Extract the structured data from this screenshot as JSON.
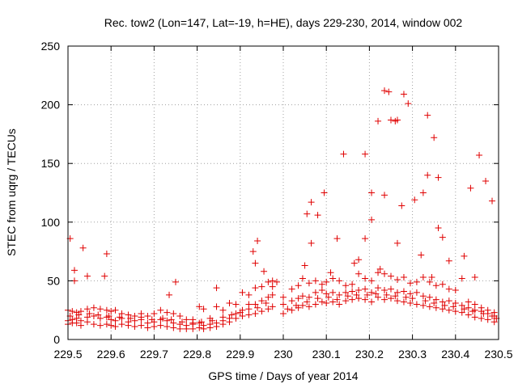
{
  "chart_data": {
    "type": "scatter",
    "title": "Rec. tow2 (Lon=147, Lat=-19, h=HE), days 229-230, 2014, window 002",
    "xlabel": "GPS time / Days of year 2014",
    "ylabel": "STEC from uqrg / TECUs",
    "xlim": [
      229.5,
      230.5
    ],
    "ylim": [
      0,
      250
    ],
    "x_ticks": [
      229.5,
      229.6,
      229.7,
      229.8,
      229.9,
      230.0,
      230.1,
      230.2,
      230.3,
      230.4,
      230.5
    ],
    "x_tick_labels": [
      "229.5",
      "229.6",
      "229.7",
      "229.8",
      "229.9",
      "230",
      "230.1",
      "230.2",
      "230.3",
      "230.4",
      "230.5"
    ],
    "y_ticks": [
      0,
      50,
      100,
      150,
      200,
      250
    ],
    "y_tick_labels": [
      "0",
      "50",
      "100",
      "150",
      "200",
      "250"
    ],
    "grid": true,
    "marker": "+",
    "series": [
      {
        "name": "STEC",
        "color": "#e00000",
        "points": [
          [
            229.505,
            86
          ],
          [
            229.515,
            59
          ],
          [
            229.515,
            50
          ],
          [
            229.535,
            78
          ],
          [
            229.545,
            54
          ],
          [
            229.585,
            54
          ],
          [
            229.59,
            73
          ],
          [
            229.735,
            38
          ],
          [
            229.75,
            49
          ],
          [
            229.845,
            44
          ],
          [
            229.93,
            75
          ],
          [
            229.935,
            65
          ],
          [
            229.94,
            84
          ],
          [
            229.955,
            58
          ],
          [
            229.975,
            50
          ],
          [
            229.985,
            49
          ],
          [
            230.05,
            63
          ],
          [
            230.055,
            107
          ],
          [
            230.065,
            117
          ],
          [
            230.065,
            82
          ],
          [
            230.08,
            106
          ],
          [
            230.095,
            125
          ],
          [
            230.11,
            57
          ],
          [
            230.125,
            86
          ],
          [
            230.14,
            158
          ],
          [
            230.165,
            65
          ],
          [
            230.175,
            68
          ],
          [
            230.19,
            158
          ],
          [
            230.19,
            86
          ],
          [
            230.205,
            125
          ],
          [
            230.205,
            102
          ],
          [
            230.22,
            186
          ],
          [
            230.225,
            60
          ],
          [
            230.235,
            212
          ],
          [
            230.235,
            123
          ],
          [
            230.245,
            211
          ],
          [
            230.25,
            187
          ],
          [
            230.26,
            186
          ],
          [
            230.265,
            187
          ],
          [
            230.265,
            82
          ],
          [
            230.275,
            114
          ],
          [
            230.28,
            209
          ],
          [
            230.29,
            201
          ],
          [
            230.305,
            119
          ],
          [
            230.32,
            72
          ],
          [
            230.325,
            125
          ],
          [
            230.335,
            191
          ],
          [
            230.335,
            140
          ],
          [
            230.345,
            53
          ],
          [
            230.35,
            172
          ],
          [
            230.36,
            138
          ],
          [
            230.36,
            95
          ],
          [
            230.37,
            87
          ],
          [
            230.385,
            67
          ],
          [
            230.42,
            71
          ],
          [
            230.435,
            129
          ],
          [
            230.445,
            53
          ],
          [
            230.455,
            157
          ],
          [
            230.47,
            135
          ],
          [
            230.485,
            118
          ],
          [
            229.5,
            25
          ],
          [
            229.51,
            24
          ],
          [
            229.52,
            23
          ],
          [
            229.53,
            24
          ],
          [
            229.545,
            26
          ],
          [
            229.56,
            27
          ],
          [
            229.575,
            26
          ],
          [
            229.59,
            25
          ],
          [
            229.6,
            24
          ],
          [
            229.61,
            25
          ],
          [
            229.625,
            22
          ],
          [
            229.64,
            21
          ],
          [
            229.655,
            20
          ],
          [
            229.67,
            22
          ],
          [
            229.685,
            20
          ],
          [
            229.7,
            22
          ],
          [
            229.715,
            25
          ],
          [
            229.73,
            23
          ],
          [
            229.745,
            22
          ],
          [
            229.76,
            20
          ],
          [
            229.775,
            17
          ],
          [
            229.79,
            17
          ],
          [
            229.805,
            28
          ],
          [
            229.815,
            26
          ],
          [
            229.83,
            18
          ],
          [
            229.845,
            28
          ],
          [
            229.86,
            25
          ],
          [
            229.875,
            31
          ],
          [
            229.89,
            30
          ],
          [
            229.905,
            40
          ],
          [
            229.92,
            38
          ],
          [
            229.935,
            44
          ],
          [
            229.95,
            45
          ],
          [
            229.965,
            49
          ],
          [
            229.975,
            45
          ],
          [
            230.0,
            36
          ],
          [
            230.02,
            43
          ],
          [
            230.035,
            46
          ],
          [
            230.045,
            52
          ],
          [
            230.06,
            48
          ],
          [
            230.075,
            50
          ],
          [
            230.09,
            47
          ],
          [
            230.1,
            49
          ],
          [
            230.115,
            52
          ],
          [
            230.13,
            50
          ],
          [
            230.145,
            46
          ],
          [
            230.16,
            47
          ],
          [
            230.175,
            56
          ],
          [
            230.19,
            52
          ],
          [
            230.205,
            50
          ],
          [
            230.22,
            57
          ],
          [
            230.235,
            56
          ],
          [
            230.25,
            54
          ],
          [
            230.265,
            51
          ],
          [
            230.28,
            53
          ],
          [
            230.295,
            48
          ],
          [
            230.31,
            49
          ],
          [
            230.325,
            53
          ],
          [
            230.34,
            49
          ],
          [
            230.355,
            46
          ],
          [
            230.37,
            47
          ],
          [
            230.385,
            43
          ],
          [
            230.4,
            42
          ],
          [
            230.415,
            52
          ],
          [
            230.43,
            32
          ],
          [
            230.445,
            30
          ],
          [
            230.46,
            27
          ],
          [
            230.475,
            25
          ],
          [
            230.49,
            23
          ],
          [
            229.5,
            16
          ],
          [
            229.51,
            17
          ],
          [
            229.52,
            18
          ],
          [
            229.53,
            16
          ],
          [
            229.545,
            19
          ],
          [
            229.56,
            20
          ],
          [
            229.575,
            18
          ],
          [
            229.59,
            19
          ],
          [
            229.6,
            17
          ],
          [
            229.61,
            16
          ],
          [
            229.625,
            18
          ],
          [
            229.64,
            15
          ],
          [
            229.655,
            16
          ],
          [
            229.67,
            17
          ],
          [
            229.685,
            14
          ],
          [
            229.7,
            15
          ],
          [
            229.715,
            17
          ],
          [
            229.73,
            16
          ],
          [
            229.745,
            14
          ],
          [
            229.76,
            13
          ],
          [
            229.775,
            12
          ],
          [
            229.79,
            13
          ],
          [
            229.805,
            14
          ],
          [
            229.815,
            12
          ],
          [
            229.83,
            13
          ],
          [
            229.845,
            14
          ],
          [
            229.86,
            16
          ],
          [
            229.875,
            18
          ],
          [
            229.89,
            22
          ],
          [
            229.905,
            25
          ],
          [
            229.92,
            26
          ],
          [
            229.935,
            30
          ],
          [
            229.95,
            33
          ],
          [
            229.965,
            36
          ],
          [
            229.975,
            38
          ],
          [
            230.0,
            30
          ],
          [
            230.02,
            33
          ],
          [
            230.035,
            35
          ],
          [
            230.045,
            37
          ],
          [
            230.06,
            36
          ],
          [
            230.075,
            40
          ],
          [
            230.09,
            42
          ],
          [
            230.1,
            39
          ],
          [
            230.115,
            40
          ],
          [
            230.13,
            38
          ],
          [
            230.145,
            40
          ],
          [
            230.16,
            41
          ],
          [
            230.175,
            42
          ],
          [
            230.19,
            43
          ],
          [
            230.205,
            40
          ],
          [
            230.22,
            44
          ],
          [
            230.235,
            42
          ],
          [
            230.25,
            43
          ],
          [
            230.265,
            40
          ],
          [
            230.28,
            41
          ],
          [
            230.295,
            39
          ],
          [
            230.31,
            40
          ],
          [
            230.325,
            37
          ],
          [
            230.34,
            36
          ],
          [
            230.355,
            34
          ],
          [
            230.37,
            32
          ],
          [
            230.385,
            33
          ],
          [
            230.4,
            31
          ],
          [
            230.415,
            29
          ],
          [
            230.43,
            27
          ],
          [
            230.445,
            25
          ],
          [
            230.46,
            24
          ],
          [
            230.475,
            22
          ],
          [
            230.49,
            20
          ],
          [
            229.5,
            13
          ],
          [
            229.51,
            14
          ],
          [
            229.52,
            14
          ],
          [
            229.53,
            12
          ],
          [
            229.545,
            15
          ],
          [
            229.56,
            13
          ],
          [
            229.575,
            12
          ],
          [
            229.59,
            13
          ],
          [
            229.6,
            12
          ],
          [
            229.61,
            11
          ],
          [
            229.625,
            13
          ],
          [
            229.64,
            12
          ],
          [
            229.655,
            11
          ],
          [
            229.67,
            12
          ],
          [
            229.685,
            10
          ],
          [
            229.7,
            11
          ],
          [
            229.715,
            12
          ],
          [
            229.73,
            11
          ],
          [
            229.745,
            10
          ],
          [
            229.76,
            9
          ],
          [
            229.775,
            9
          ],
          [
            229.79,
            9
          ],
          [
            229.805,
            10
          ],
          [
            229.815,
            9
          ],
          [
            229.83,
            10
          ],
          [
            229.845,
            11
          ],
          [
            229.86,
            13
          ],
          [
            229.875,
            15
          ],
          [
            229.89,
            18
          ],
          [
            229.905,
            20
          ],
          [
            229.92,
            21
          ],
          [
            229.935,
            22
          ],
          [
            229.95,
            24
          ],
          [
            229.965,
            26
          ],
          [
            229.975,
            28
          ],
          [
            230.0,
            22
          ],
          [
            230.02,
            25
          ],
          [
            230.035,
            27
          ],
          [
            230.045,
            29
          ],
          [
            230.06,
            28
          ],
          [
            230.075,
            30
          ],
          [
            230.09,
            32
          ],
          [
            230.1,
            31
          ],
          [
            230.115,
            32
          ],
          [
            230.13,
            30
          ],
          [
            230.145,
            33
          ],
          [
            230.16,
            34
          ],
          [
            230.175,
            35
          ],
          [
            230.19,
            34
          ],
          [
            230.205,
            32
          ],
          [
            230.22,
            36
          ],
          [
            230.235,
            34
          ],
          [
            230.25,
            35
          ],
          [
            230.265,
            33
          ],
          [
            230.28,
            32
          ],
          [
            230.295,
            31
          ],
          [
            230.31,
            30
          ],
          [
            230.325,
            29
          ],
          [
            230.34,
            28
          ],
          [
            230.355,
            27
          ],
          [
            230.37,
            26
          ],
          [
            230.385,
            25
          ],
          [
            230.4,
            24
          ],
          [
            230.415,
            23
          ],
          [
            230.43,
            21
          ],
          [
            230.445,
            19
          ],
          [
            230.46,
            18
          ],
          [
            230.475,
            17
          ],
          [
            230.49,
            15
          ],
          [
            229.505,
            20
          ],
          [
            229.525,
            21
          ],
          [
            229.55,
            22
          ],
          [
            229.57,
            21
          ],
          [
            229.595,
            20
          ],
          [
            229.62,
            19
          ],
          [
            229.645,
            18
          ],
          [
            229.67,
            19
          ],
          [
            229.695,
            17
          ],
          [
            229.72,
            18
          ],
          [
            229.74,
            17
          ],
          [
            229.765,
            15
          ],
          [
            229.79,
            14
          ],
          [
            229.81,
            15
          ],
          [
            229.835,
            16
          ],
          [
            229.86,
            19
          ],
          [
            229.88,
            21
          ],
          [
            229.9,
            23
          ],
          [
            229.92,
            30
          ],
          [
            229.94,
            27
          ],
          [
            229.96,
            31
          ],
          [
            230.01,
            26
          ],
          [
            230.03,
            29
          ],
          [
            230.055,
            32
          ],
          [
            230.08,
            35
          ],
          [
            230.105,
            36
          ],
          [
            230.125,
            34
          ],
          [
            230.15,
            37
          ],
          [
            230.17,
            38
          ],
          [
            230.195,
            38
          ],
          [
            230.215,
            39
          ],
          [
            230.24,
            38
          ],
          [
            230.26,
            37
          ],
          [
            230.285,
            36
          ],
          [
            230.3,
            35
          ],
          [
            230.33,
            33
          ],
          [
            230.35,
            31
          ],
          [
            230.375,
            29
          ],
          [
            230.395,
            28
          ],
          [
            230.42,
            26
          ],
          [
            230.44,
            24
          ],
          [
            230.465,
            22
          ],
          [
            230.485,
            20
          ],
          [
            230.495,
            18
          ]
        ]
      }
    ]
  }
}
